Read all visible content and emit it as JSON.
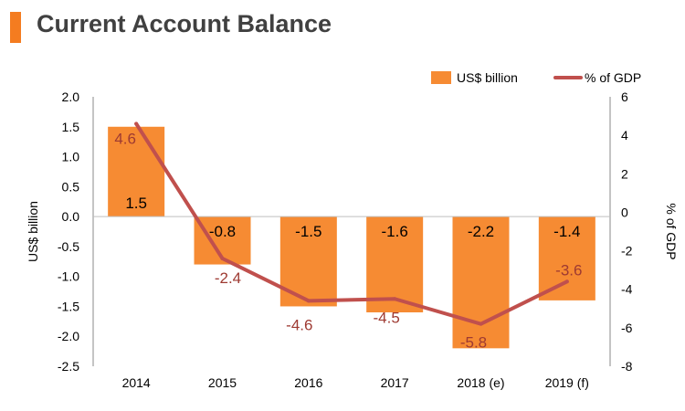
{
  "header": {
    "title": "Current Account Balance"
  },
  "colors": {
    "accent": "#F47C20",
    "bar": "#F68B33",
    "line": "#C0504D",
    "axis": "#888888",
    "title": "#404040",
    "label_line": "#9E3A32"
  },
  "chart_data": {
    "type": "bar",
    "categories": [
      "2014",
      "2015",
      "2016",
      "2017",
      "2018 (e)",
      "2019 (f)"
    ],
    "series": [
      {
        "name": "US$ billion",
        "type": "bar",
        "axis": "left",
        "values": [
          1.5,
          -0.8,
          -1.5,
          -1.6,
          -2.2,
          -1.4
        ],
        "labels": [
          "1.5",
          "-0.8",
          "-1.5",
          "-1.6",
          "-2.2",
          "-1.4"
        ]
      },
      {
        "name": "% of GDP",
        "type": "line",
        "axis": "right",
        "values": [
          4.6,
          -2.4,
          -4.6,
          -4.5,
          -5.8,
          -3.6
        ],
        "labels": [
          "4.6",
          "-2.4",
          "-4.6",
          "-4.5",
          "-5.8",
          "-3.6"
        ]
      }
    ],
    "ylabel": "US$ billion",
    "y2label": "% of GDP",
    "ylim": [
      -2.5,
      2.0
    ],
    "y2lim": [
      -8,
      6
    ],
    "yticks": [
      "2.0",
      "1.5",
      "1.0",
      "0.5",
      "0.0",
      "-0.5",
      "-1.0",
      "-1.5",
      "-2.0",
      "-2.5"
    ],
    "y2ticks": [
      "6",
      "4",
      "2",
      "0",
      "-2",
      "-4",
      "-6",
      "-8"
    ],
    "legend": "top-right",
    "grid": false
  }
}
